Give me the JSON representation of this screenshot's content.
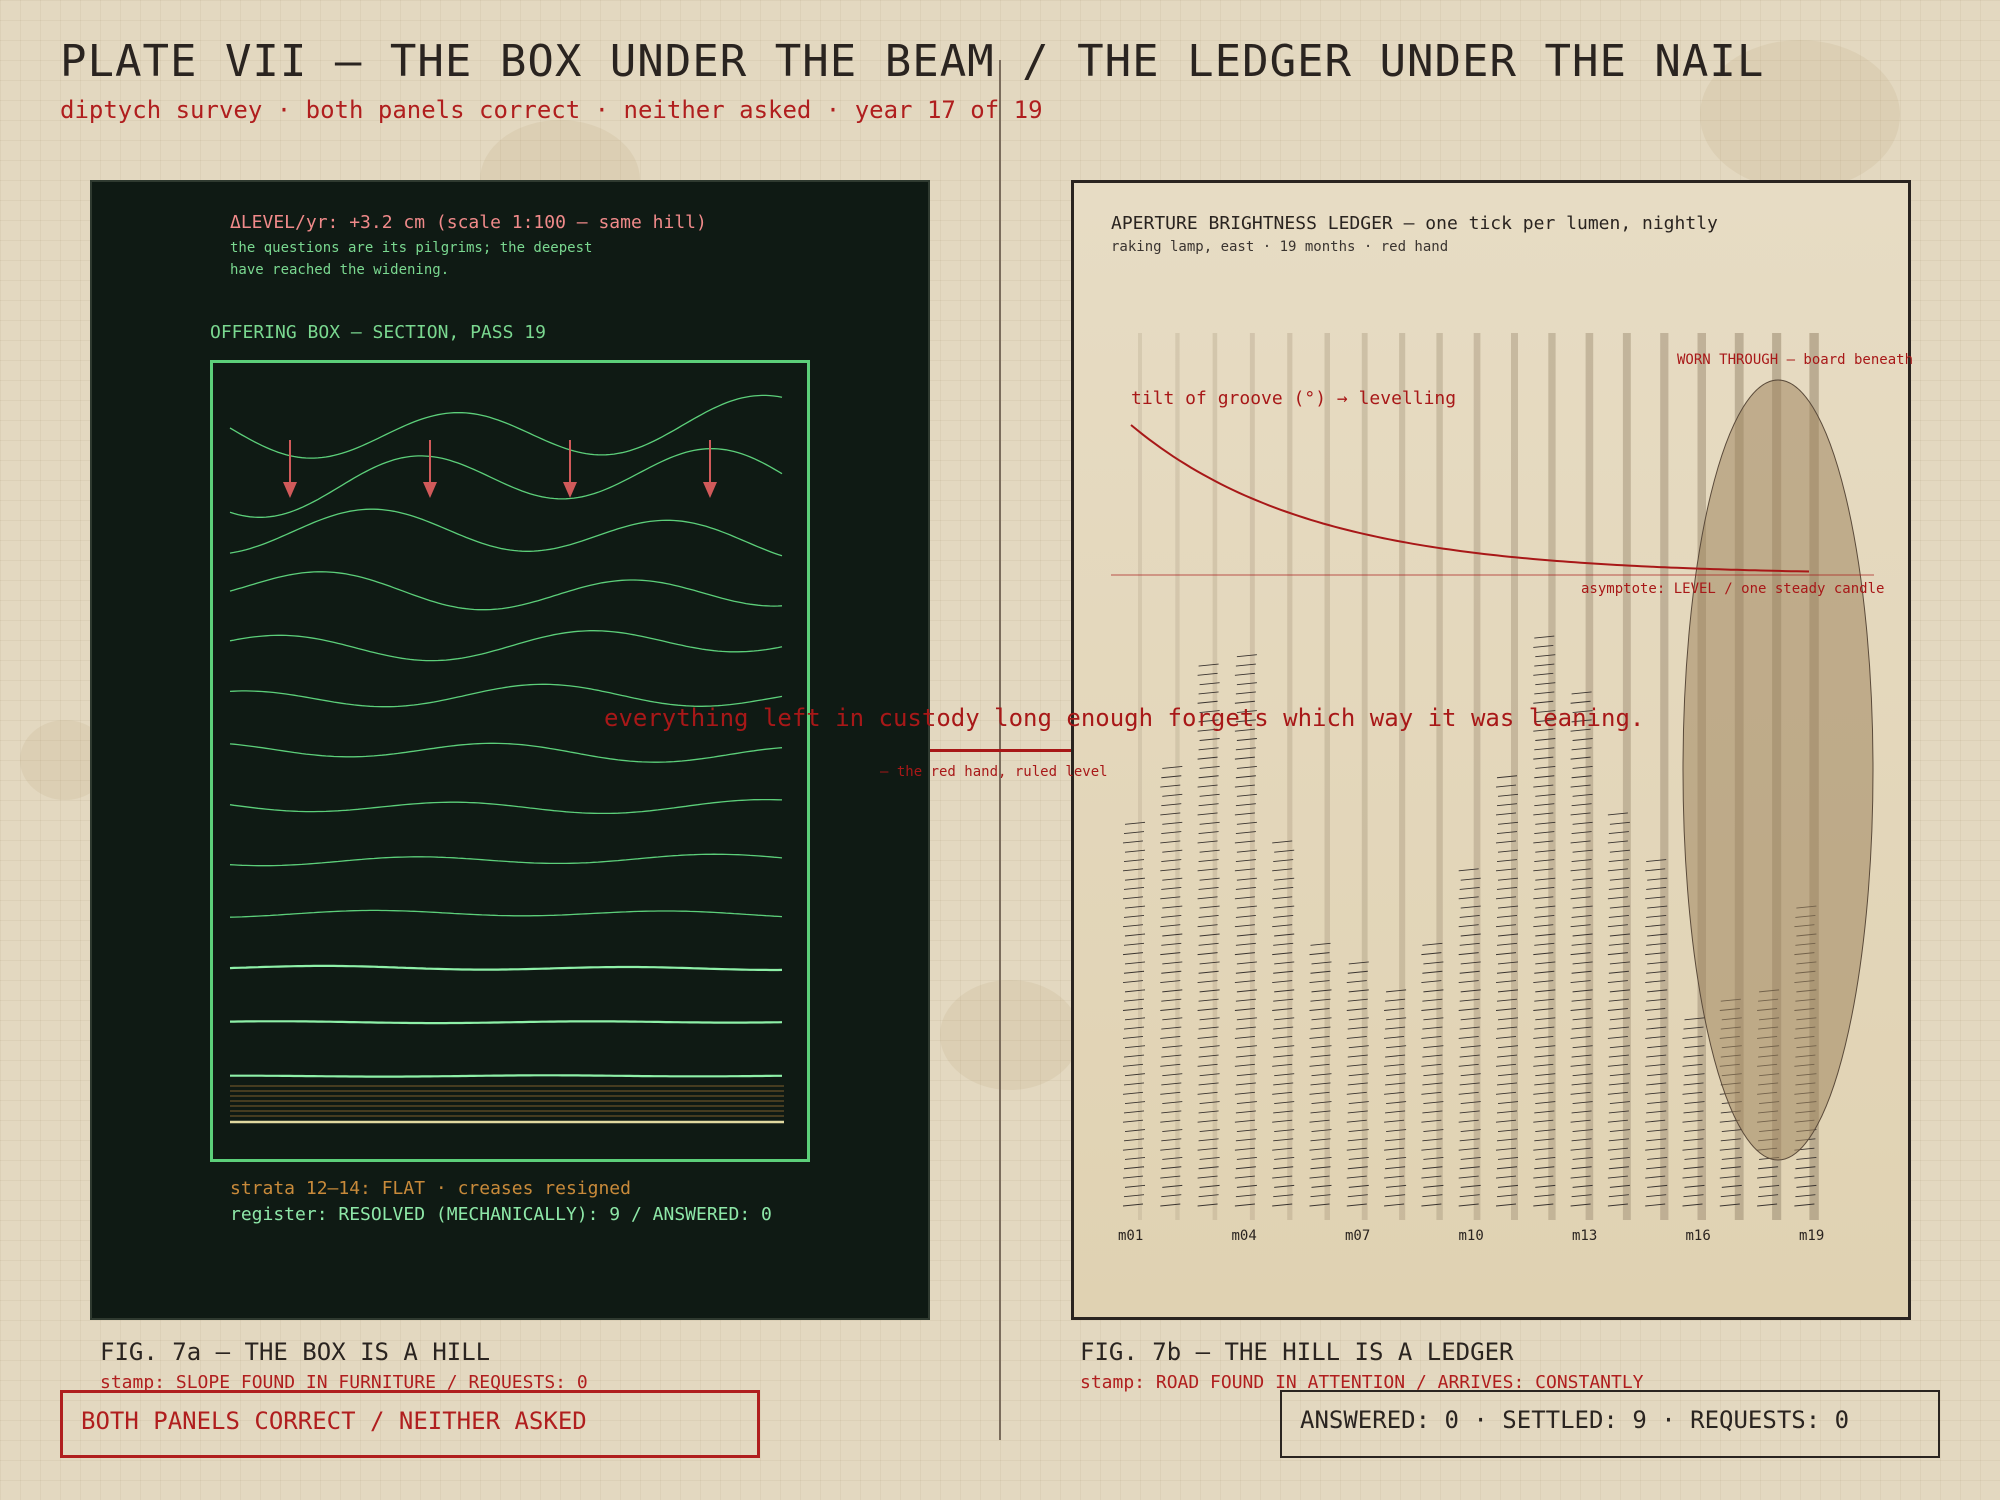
{
  "header": {
    "title": "PLATE VII — THE BOX UNDER THE BEAM  /  THE LEDGER UNDER THE NAIL",
    "subtitle": "diptych survey · both panels correct · neither asked · year 17 of 19"
  },
  "left_panel": {
    "delta_level": "ΔLEVEL/yr: +3.2 cm  (scale 1:100 — same hill)",
    "note_line1": "the questions are its pilgrims; the deepest",
    "note_line2": "have reached the widening.",
    "section_title": "OFFERING BOX — SECTION, PASS 19",
    "strata_note": "strata 12–14: FLAT · creases resigned",
    "register": "register: RESOLVED (MECHANICALLY): 9 / ANSWERED: 0",
    "colors": {
      "bg": "#0f1a14",
      "green": "#5ccf7a",
      "arrow": "#d05a5a",
      "amber": "#c88a3a"
    },
    "strata_amplitudes": [
      0.95,
      1.0,
      0.75,
      0.6,
      0.48,
      0.38,
      0.3,
      0.22,
      0.16,
      0.11,
      0.06,
      0.03,
      0.02
    ],
    "arrow_count": 4
  },
  "right_panel": {
    "title": "APERTURE BRIGHTNESS LEDGER — one tick per lumen, nightly",
    "subtitle": "raking lamp, east · 19 months · red hand",
    "curve_label": "tilt of groove (°) → levelling",
    "worn_label": "WORN THROUGH — board beneath",
    "asymptote_label": "asymptote: LEVEL / one steady candle",
    "month_labels": [
      "m01",
      "m04",
      "m07",
      "m10",
      "m13",
      "m16",
      "m19"
    ],
    "monthly_ticks": [
      42,
      48,
      59,
      60,
      40,
      29,
      27,
      24,
      29,
      37,
      47,
      62,
      56,
      43,
      38,
      21,
      23,
      24,
      33
    ],
    "colors": {
      "red": "#a81818",
      "ink": "#4a4038",
      "ellipse": "#a08660"
    }
  },
  "annotation": {
    "quote": "everything left in custody long enough forgets which way it was leaning.",
    "attribution": "— the red hand, ruled level"
  },
  "captions": {
    "fig_a": "FIG. 7a — THE BOX IS A HILL",
    "stamp_a": "stamp: SLOPE FOUND IN FURNITURE / REQUESTS: 0",
    "fig_b": "FIG. 7b — THE HILL IS A LEDGER",
    "stamp_b": "stamp: ROAD FOUND IN ATTENTION / ARRIVES: CONSTANTLY"
  },
  "badges": {
    "left": "BOTH PANELS CORRECT / NEITHER ASKED",
    "right": "ANSWERED: 0 · SETTLED: 9 · REQUESTS: 0"
  }
}
